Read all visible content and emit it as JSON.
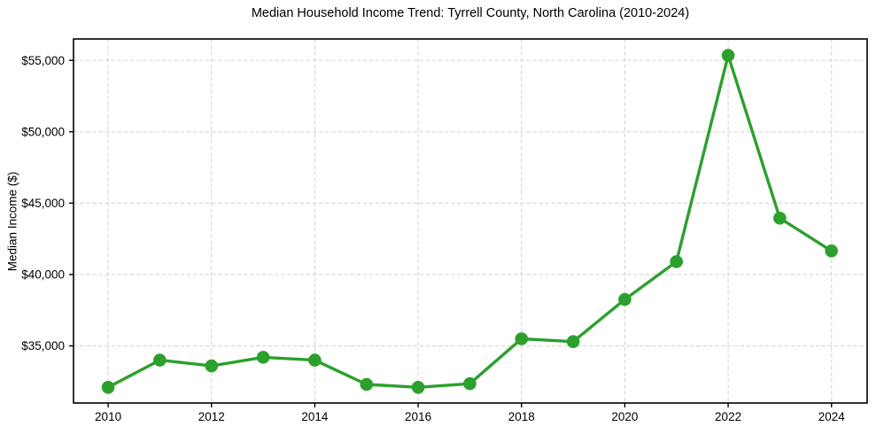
{
  "chart_data": {
    "type": "line",
    "title": "Median Household Income Trend: Tyrrell County, North Carolina (2010-2024)",
    "xlabel": "",
    "ylabel": "Median Income ($)",
    "x": [
      2010,
      2011,
      2012,
      2013,
      2014,
      2015,
      2016,
      2017,
      2018,
      2019,
      2020,
      2021,
      2022,
      2023,
      2024
    ],
    "values": [
      32100,
      34000,
      33600,
      34200,
      34000,
      32300,
      32100,
      32350,
      35500,
      35300,
      38250,
      40900,
      55350,
      43950,
      41650
    ],
    "xlim": [
      2009.33,
      2024.69
    ],
    "ylim": [
      31000,
      56500
    ],
    "xticks": [
      {
        "value": 2010,
        "label": "2010"
      },
      {
        "value": 2012,
        "label": "2012"
      },
      {
        "value": 2014,
        "label": "2014"
      },
      {
        "value": 2016,
        "label": "2016"
      },
      {
        "value": 2018,
        "label": "2018"
      },
      {
        "value": 2020,
        "label": "2020"
      },
      {
        "value": 2022,
        "label": "2022"
      },
      {
        "value": 2024,
        "label": "2024"
      }
    ],
    "yticks": [
      {
        "value": 35000,
        "label": "$35,000"
      },
      {
        "value": 40000,
        "label": "$40,000"
      },
      {
        "value": 45000,
        "label": "$45,000"
      },
      {
        "value": 50000,
        "label": "$50,000"
      },
      {
        "value": 55000,
        "label": "$55,000"
      }
    ],
    "grid": true,
    "grid_style": "dashed",
    "legend": false,
    "colors": {
      "line": "#2ca02c",
      "marker": "#2ca02c",
      "grid": "#d6d6d6",
      "frame": "#000000",
      "text": "#000000",
      "background": "#ffffff"
    }
  }
}
